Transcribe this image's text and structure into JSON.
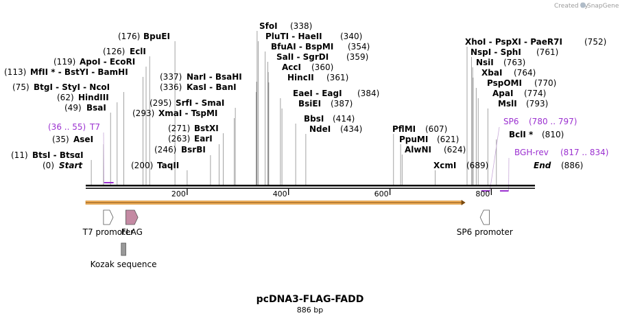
{
  "credit": {
    "text": "Created by",
    "brand": "SnapGene",
    "icon": "snapgene-logo-icon"
  },
  "title": "pcDNA3-FLAG-FADD",
  "length_label": "886 bp",
  "scale": {
    "start": 0,
    "end": 886,
    "ticks": [
      {
        "label": "200",
        "value": 200
      },
      {
        "label": "400",
        "value": 400
      },
      {
        "label": "600",
        "value": 600
      },
      {
        "label": "800",
        "value": 800
      }
    ]
  },
  "sites": [
    {
      "id": "s0",
      "pos": "(0)",
      "name": "Start",
      "value": 0
    },
    {
      "id": "s1",
      "pos": "(11)",
      "name": "BtsI  -  BtsαI",
      "value": 11
    },
    {
      "id": "s2",
      "pos": "(35)",
      "name": "AseI",
      "value": 35
    },
    {
      "id": "s3",
      "pos": "(49)",
      "name": "BsaI",
      "value": 49
    },
    {
      "id": "s4",
      "pos": "(62)",
      "name": "HindIII",
      "value": 62
    },
    {
      "id": "s5",
      "pos": "(75)",
      "name": "BtgI  -  StyI  -  NcoI",
      "value": 75
    },
    {
      "id": "s6",
      "pos": "(113)",
      "name": "MfII *  -  BstYI  -  BamHI",
      "value": 113
    },
    {
      "id": "s7",
      "pos": "(119)",
      "name": "ApoI  -  EcoRI",
      "value": 119
    },
    {
      "id": "s8",
      "pos": "(126)",
      "name": "EclI",
      "value": 126
    },
    {
      "id": "s9",
      "pos": "(176)",
      "name": "BpuEI",
      "value": 176
    },
    {
      "id": "s10",
      "pos": "(200)",
      "name": "TaqII",
      "value": 200
    },
    {
      "id": "s11",
      "pos": "(246)",
      "name": "BsrBI",
      "value": 246
    },
    {
      "id": "s12",
      "pos": "(263)",
      "name": "EarI",
      "value": 263
    },
    {
      "id": "s13",
      "pos": "(271)",
      "name": "BstXI",
      "value": 271
    },
    {
      "id": "s14",
      "pos": "(293)",
      "name": "XmaI  -  TspMI",
      "value": 293
    },
    {
      "id": "s15",
      "pos": "(295)",
      "name": "SrfI  -  SmaI",
      "value": 295
    },
    {
      "id": "s16",
      "pos": "(336)",
      "name": "KasI  -  BanI",
      "value": 336
    },
    {
      "id": "s17",
      "pos": "(337)",
      "name": "NarI  -  BsaHI",
      "value": 337
    },
    {
      "id": "s18",
      "pos": "(338)",
      "name": "SfoI",
      "value": 338
    },
    {
      "id": "s19",
      "pos": "(340)",
      "name": "PluTI  -  HaeII",
      "value": 340
    },
    {
      "id": "s20",
      "pos": "(354)",
      "name": "BfuAI  -  BspMI",
      "value": 354
    },
    {
      "id": "s21",
      "pos": "(359)",
      "name": "SalI  -  SgrDI",
      "value": 359
    },
    {
      "id": "s22",
      "pos": "(360)",
      "name": "AccI",
      "value": 360
    },
    {
      "id": "s23",
      "pos": "(361)",
      "name": "HincII",
      "value": 361
    },
    {
      "id": "s24",
      "pos": "(384)",
      "name": "EaeI  -  EagI",
      "value": 384
    },
    {
      "id": "s25",
      "pos": "(387)",
      "name": "BsiEI",
      "value": 387
    },
    {
      "id": "s26",
      "pos": "(414)",
      "name": "BbsI",
      "value": 414
    },
    {
      "id": "s27",
      "pos": "(434)",
      "name": "NdeI",
      "value": 434
    },
    {
      "id": "s28",
      "pos": "(607)",
      "name": "PflMI",
      "value": 607
    },
    {
      "id": "s29",
      "pos": "(621)",
      "name": "PpuMI",
      "value": 621
    },
    {
      "id": "s30",
      "pos": "(624)",
      "name": "AlwNI",
      "value": 624
    },
    {
      "id": "s31",
      "pos": "(689)",
      "name": "XcmI",
      "value": 689
    },
    {
      "id": "s32",
      "pos": "(752)",
      "name": "XhoI  -  PspXI  -  PaeR7I",
      "value": 752
    },
    {
      "id": "s33",
      "pos": "(761)",
      "name": "NspI  -  SphI",
      "value": 761
    },
    {
      "id": "s34",
      "pos": "(763)",
      "name": "NsiI",
      "value": 763
    },
    {
      "id": "s35",
      "pos": "(764)",
      "name": "XbaI",
      "value": 764
    },
    {
      "id": "s36",
      "pos": "(770)",
      "name": "PspOMI",
      "value": 770
    },
    {
      "id": "s37",
      "pos": "(774)",
      "name": "ApaI",
      "value": 774
    },
    {
      "id": "s38",
      "pos": "(793)",
      "name": "MslI",
      "value": 793
    },
    {
      "id": "s39",
      "pos": "(810)",
      "name": "BclI *",
      "value": 810
    },
    {
      "id": "s40",
      "pos": "(886)",
      "name": "End",
      "value": 886
    }
  ],
  "primers": [
    {
      "id": "p1",
      "name": "T7",
      "range": "(36 .. 55)",
      "start": 36,
      "end": 55
    },
    {
      "id": "p2",
      "name": "SP6",
      "range": "(780 .. 797)",
      "start": 780,
      "end": 797
    },
    {
      "id": "p3",
      "name": "BGH-rev",
      "range": "(817 .. 834)",
      "start": 817,
      "end": 834
    }
  ],
  "features": [
    {
      "id": "f1",
      "name": "T7 promoter",
      "start": 35,
      "end": 54,
      "color": "#ffffff",
      "direction": "forward"
    },
    {
      "id": "f2",
      "name": "FLAG",
      "start": 79,
      "end": 103,
      "color": "#c48aa3",
      "direction": "forward"
    },
    {
      "id": "f3",
      "name": "Kozak sequence",
      "start": 70,
      "end": 79,
      "color": "#999999",
      "direction": "none"
    },
    {
      "id": "f4",
      "name": "SP6 promoter",
      "start": 778,
      "end": 796,
      "color": "#ffffff",
      "direction": "reverse"
    }
  ],
  "orf": {
    "start": 0,
    "end": 749,
    "color": "#f5b15a"
  },
  "colors": {
    "primer": "#9b30d0",
    "backbone": "#000000"
  }
}
